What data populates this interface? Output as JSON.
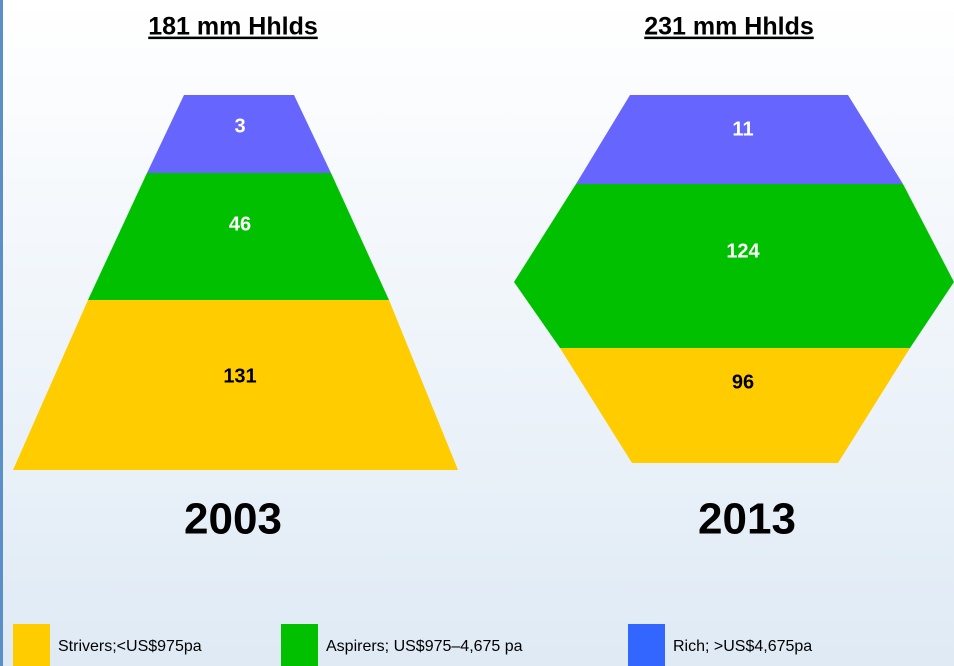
{
  "panels": [
    {
      "heading": "181 mm Hhlds",
      "year": "2003",
      "segments": [
        {
          "label": "3"
        },
        {
          "label": "46"
        },
        {
          "label": "131"
        }
      ]
    },
    {
      "heading": "231 mm Hhlds",
      "year": "2013",
      "segments": [
        {
          "label": "11"
        },
        {
          "label": "124"
        },
        {
          "label": "96"
        }
      ]
    }
  ],
  "legend": [
    {
      "label": "Strivers;<US$975pa"
    },
    {
      "label": "Aspirers; US$975–4,675 pa"
    },
    {
      "label": "Rich; >US$4,675pa"
    }
  ]
}
